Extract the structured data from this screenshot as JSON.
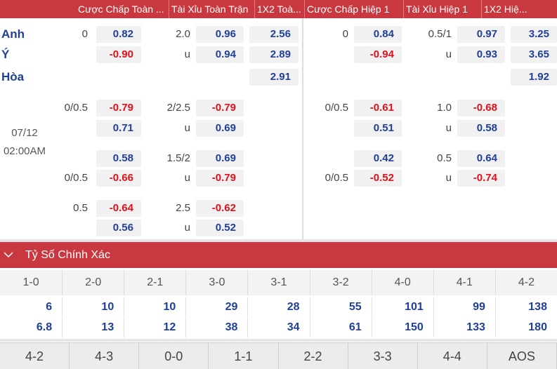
{
  "header": {
    "columns": [
      "Cược Chấp Toàn ...",
      "Tài Xỉu Toàn Trận",
      "1X2 Toà...",
      "Cược Chấp Hiệp 1",
      "Tài Xỉu Hiệp 1",
      "1X2 Hiệ..."
    ]
  },
  "match": {
    "teams": [
      "Anh",
      "Ý",
      "Hòa"
    ],
    "date": "07/12",
    "time": "02:00AM"
  },
  "rows": [
    {
      "hl": "0",
      "ho": "0.82",
      "tl": "2.0",
      "to": "0.96",
      "x": "2.56",
      "hl1": "0",
      "ho1": "0.84",
      "tl1": "0.5/1",
      "to1": "0.97",
      "x1": "3.25"
    },
    {
      "ho": "-0.90",
      "tl": "u",
      "to": "0.94",
      "x": "2.89",
      "ho1": "-0.94",
      "tl1": "u",
      "to1": "0.93",
      "x1": "3.65"
    },
    {
      "x": "2.91",
      "x1": "1.92"
    },
    {
      "hl": "0/0.5",
      "ho": "-0.79",
      "tl": "2/2.5",
      "to": "-0.79",
      "hl1": "0/0.5",
      "ho1": "-0.61",
      "tl1": "1.0",
      "to1": "-0.68"
    },
    {
      "ho": "0.71",
      "tl": "u",
      "to": "0.69",
      "ho1": "0.51",
      "tl1": "u",
      "to1": "0.58"
    },
    {
      "ho": "0.58",
      "tl": "1.5/2",
      "to": "0.69",
      "ho1": "0.42",
      "tl1": "0.5",
      "to1": "0.64"
    },
    {
      "hl": "0/0.5",
      "ho": "-0.66",
      "tl": "u",
      "to": "-0.79",
      "hl1": "0/0.5",
      "ho1": "-0.52",
      "tl1": "u",
      "to1": "-0.74"
    },
    {
      "hl": "0.5",
      "ho": "-0.64",
      "tl": "2.5",
      "to": "-0.62"
    },
    {
      "ho": "0.56",
      "tl": "u",
      "to": "0.52"
    }
  ],
  "exact_score": {
    "title": "Tỷ Số Chính Xác",
    "scores": [
      {
        "score": "1-0",
        "odds": [
          6,
          6.8
        ]
      },
      {
        "score": "2-0",
        "odds": [
          10,
          13
        ]
      },
      {
        "score": "2-1",
        "odds": [
          10,
          12
        ]
      },
      {
        "score": "3-0",
        "odds": [
          29,
          38
        ]
      },
      {
        "score": "3-1",
        "odds": [
          28,
          34
        ]
      },
      {
        "score": "3-2",
        "odds": [
          55,
          61
        ]
      },
      {
        "score": "4-0",
        "odds": [
          101,
          150
        ]
      },
      {
        "score": "4-1",
        "odds": [
          99,
          133
        ]
      },
      {
        "score": "4-2",
        "odds": [
          138,
          180
        ]
      }
    ],
    "tabs": [
      "4-2",
      "4-3",
      "0-0",
      "1-1",
      "2-2",
      "3-3",
      "4-4",
      "AOS"
    ]
  }
}
